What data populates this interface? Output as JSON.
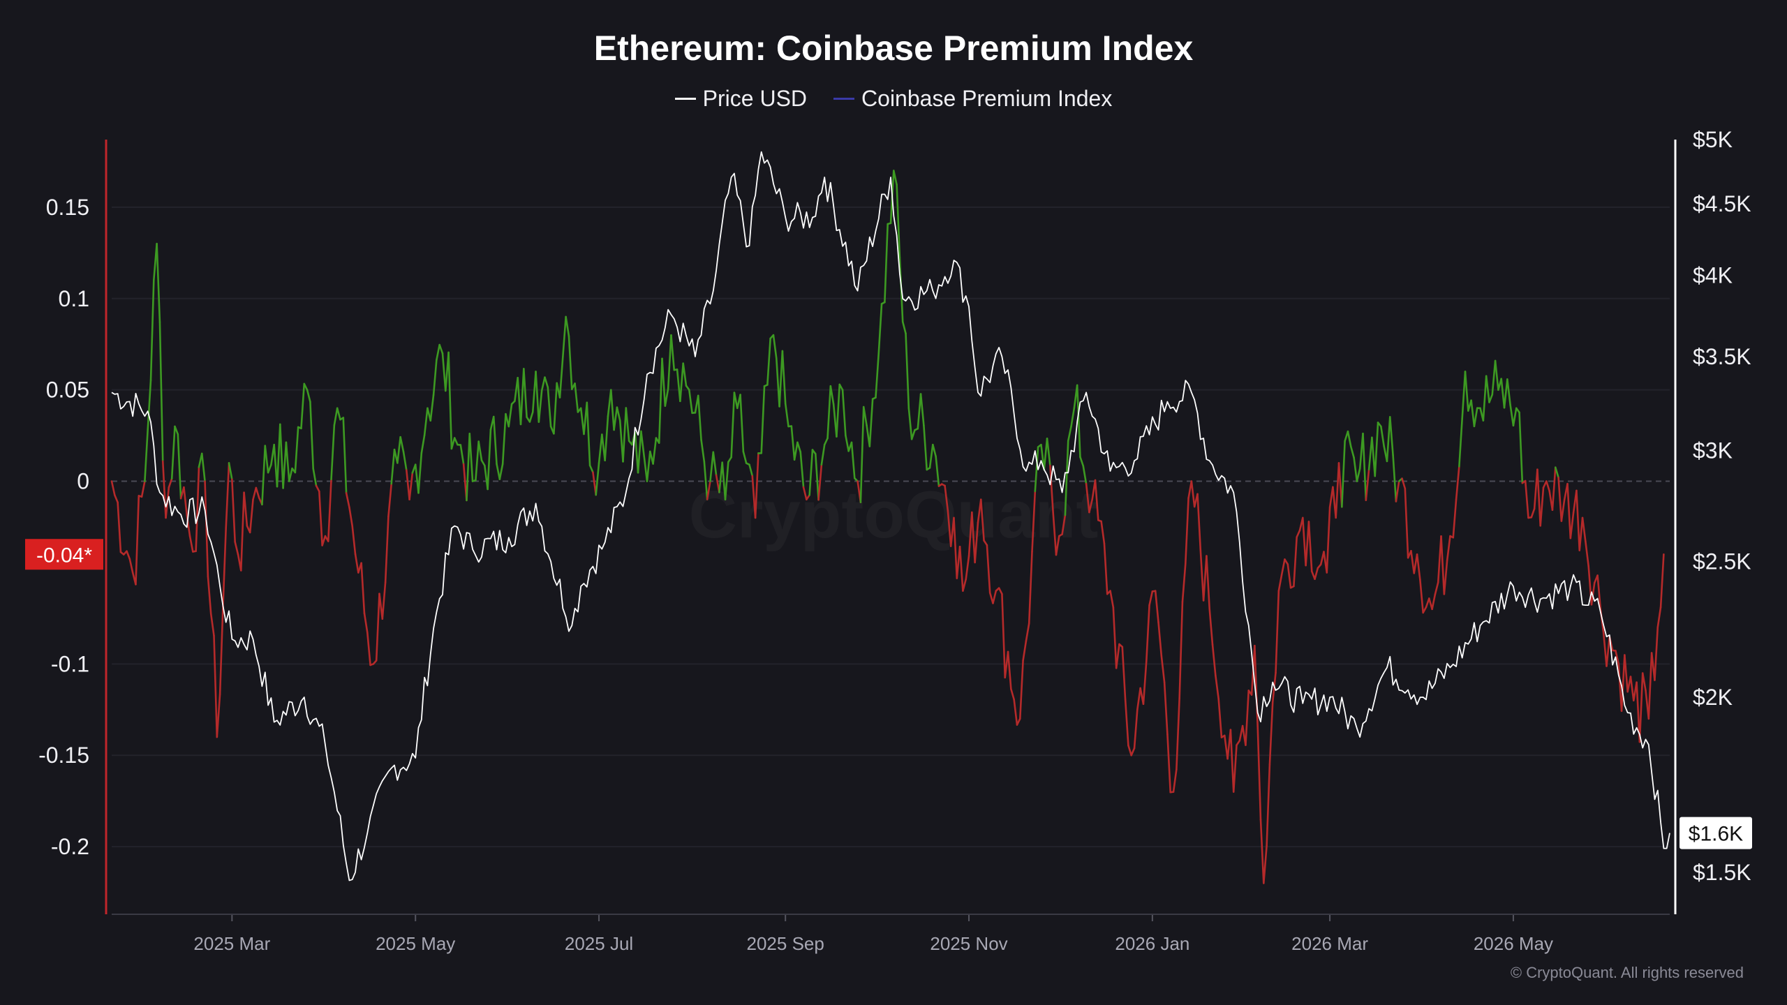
{
  "chart_data": {
    "type": "line",
    "title": "Ethereum: Coinbase Premium Index",
    "legend": [
      {
        "name": "Price USD",
        "color": "#ffffff"
      },
      {
        "name": "Coinbase Premium Index",
        "color": "#3a3aa8"
      }
    ],
    "legend_position": "top-center",
    "x_ticks": [
      "2025 Mar",
      "2025 May",
      "2025 Jul",
      "2025 Sep",
      "2025 Nov",
      "2026 Jan",
      "2026 Mar",
      "2026 May"
    ],
    "x_range": [
      "2025-01-20",
      "2026-06-22"
    ],
    "y_left": {
      "label": "",
      "ticks": [
        0.15,
        0.1,
        0.05,
        0,
        -0.1,
        -0.15,
        -0.2
      ],
      "tick_labels": [
        "0.15",
        "0.1",
        "0.05",
        "0",
        "-0.1",
        "-0.15",
        "-0.2"
      ],
      "range": [
        -0.237,
        0.187
      ]
    },
    "y_right": {
      "label": "",
      "scale": "log",
      "ticks": [
        5000,
        4500,
        4000,
        3500,
        3000,
        2500,
        2000,
        1500
      ],
      "tick_labels": [
        "$5K",
        "$4.5K",
        "$4K",
        "$3.5K",
        "$3K",
        "$2.5K",
        "$2K",
        "$1.5K"
      ],
      "range": [
        1400,
        5000
      ]
    },
    "current_value_labels": {
      "premium": "-0.04*",
      "price": "$1.6K"
    },
    "colors": {
      "positive": "#3d9a22",
      "negative": "#b52a2a",
      "price": "#ffffff",
      "badge_red": "#d92020"
    },
    "grid": true,
    "series": [
      {
        "name": "Price USD",
        "axis": "right",
        "points": [
          [
            "2025-01-20",
            3300
          ],
          [
            "2025-02-01",
            3200
          ],
          [
            "2025-02-05",
            2800
          ],
          [
            "2025-02-12",
            2700
          ],
          [
            "2025-02-20",
            2720
          ],
          [
            "2025-02-25",
            2400
          ],
          [
            "2025-03-01",
            2200
          ],
          [
            "2025-03-08",
            2200
          ],
          [
            "2025-03-15",
            1920
          ],
          [
            "2025-03-25",
            2000
          ],
          [
            "2025-04-01",
            1850
          ],
          [
            "2025-04-09",
            1480
          ],
          [
            "2025-04-15",
            1600
          ],
          [
            "2025-04-23",
            1780
          ],
          [
            "2025-05-01",
            1810
          ],
          [
            "2025-05-08",
            2300
          ],
          [
            "2025-05-14",
            2650
          ],
          [
            "2025-05-20",
            2550
          ],
          [
            "2025-06-01",
            2600
          ],
          [
            "2025-06-10",
            2750
          ],
          [
            "2025-06-15",
            2500
          ],
          [
            "2025-06-22",
            2250
          ],
          [
            "2025-06-25",
            2400
          ],
          [
            "2025-07-03",
            2580
          ],
          [
            "2025-07-10",
            2800
          ],
          [
            "2025-07-17",
            3400
          ],
          [
            "2025-07-25",
            3750
          ],
          [
            "2025-08-02",
            3500
          ],
          [
            "2025-08-08",
            3900
          ],
          [
            "2025-08-14",
            4700
          ],
          [
            "2025-08-20",
            4200
          ],
          [
            "2025-08-24",
            4900
          ],
          [
            "2025-09-01",
            4400
          ],
          [
            "2025-09-10",
            4400
          ],
          [
            "2025-09-14",
            4700
          ],
          [
            "2025-09-25",
            3900
          ],
          [
            "2025-10-06",
            4700
          ],
          [
            "2025-10-10",
            3850
          ],
          [
            "2025-10-20",
            3900
          ],
          [
            "2025-10-27",
            4100
          ],
          [
            "2025-11-01",
            3800
          ],
          [
            "2025-11-04",
            3300
          ],
          [
            "2025-11-12",
            3500
          ],
          [
            "2025-11-20",
            2900
          ],
          [
            "2025-11-25",
            2950
          ],
          [
            "2025-12-02",
            2800
          ],
          [
            "2025-12-10",
            3300
          ],
          [
            "2025-12-18",
            2900
          ],
          [
            "2025-12-26",
            2950
          ],
          [
            "2026-01-06",
            3250
          ],
          [
            "2026-01-14",
            3300
          ],
          [
            "2026-01-20",
            2950
          ],
          [
            "2026-01-28",
            2800
          ],
          [
            "2026-02-02",
            2250
          ],
          [
            "2026-02-05",
            1950
          ],
          [
            "2026-02-10",
            2050
          ],
          [
            "2026-02-20",
            1980
          ],
          [
            "2026-03-01",
            2000
          ],
          [
            "2026-03-10",
            1900
          ],
          [
            "2026-03-20",
            2100
          ],
          [
            "2026-04-01",
            2000
          ],
          [
            "2026-04-10",
            2100
          ],
          [
            "2026-04-20",
            2250
          ],
          [
            "2026-05-01",
            2400
          ],
          [
            "2026-05-10",
            2350
          ],
          [
            "2026-05-20",
            2400
          ],
          [
            "2026-05-30",
            2300
          ],
          [
            "2026-06-08",
            1950
          ],
          [
            "2026-06-15",
            1850
          ],
          [
            "2026-06-20",
            1560
          ],
          [
            "2026-06-22",
            1600
          ]
        ]
      },
      {
        "name": "Coinbase Premium Index",
        "axis": "left",
        "points": [
          [
            "2025-01-20",
            0.0
          ],
          [
            "2025-01-27",
            -0.05
          ],
          [
            "2025-01-31",
            0.0
          ],
          [
            "2025-02-04",
            0.13
          ],
          [
            "2025-02-07",
            -0.02
          ],
          [
            "2025-02-10",
            0.03
          ],
          [
            "2025-02-15",
            -0.03
          ],
          [
            "2025-02-20",
            0.0
          ],
          [
            "2025-02-24",
            -0.14
          ],
          [
            "2025-02-28",
            0.01
          ],
          [
            "2025-03-03",
            -0.04
          ],
          [
            "2025-03-08",
            -0.01
          ],
          [
            "2025-03-15",
            0.02
          ],
          [
            "2025-03-20",
            0.0
          ],
          [
            "2025-03-26",
            0.05
          ],
          [
            "2025-04-01",
            -0.03
          ],
          [
            "2025-04-05",
            0.04
          ],
          [
            "2025-04-12",
            -0.05
          ],
          [
            "2025-04-17",
            -0.1
          ],
          [
            "2025-04-25",
            0.01
          ],
          [
            "2025-04-29",
            -0.01
          ],
          [
            "2025-05-05",
            0.04
          ],
          [
            "2025-05-10",
            0.07
          ],
          [
            "2025-05-15",
            0.02
          ],
          [
            "2025-05-20",
            0.0
          ],
          [
            "2025-06-01",
            0.03
          ],
          [
            "2025-06-10",
            0.06
          ],
          [
            "2025-06-15",
            0.03
          ],
          [
            "2025-06-20",
            0.09
          ],
          [
            "2025-06-25",
            0.04
          ],
          [
            "2025-07-01",
            0.01
          ],
          [
            "2025-07-05",
            0.05
          ],
          [
            "2025-07-12",
            0.02
          ],
          [
            "2025-07-17",
            0.0
          ],
          [
            "2025-07-25",
            0.08
          ],
          [
            "2025-07-31",
            0.05
          ],
          [
            "2025-08-07",
            0.0
          ],
          [
            "2025-08-12",
            -0.01
          ],
          [
            "2025-08-16",
            0.04
          ],
          [
            "2025-08-22",
            -0.02
          ],
          [
            "2025-08-28",
            0.08
          ],
          [
            "2025-09-02",
            0.03
          ],
          [
            "2025-09-08",
            -0.01
          ],
          [
            "2025-09-14",
            0.02
          ],
          [
            "2025-09-20",
            0.05
          ],
          [
            "2025-09-25",
            0.0
          ],
          [
            "2025-10-02",
            0.07
          ],
          [
            "2025-10-07",
            0.17
          ],
          [
            "2025-10-12",
            0.04
          ],
          [
            "2025-10-20",
            0.02
          ],
          [
            "2025-10-27",
            -0.02
          ],
          [
            "2025-10-30",
            -0.06
          ],
          [
            "2025-11-05",
            -0.01
          ],
          [
            "2025-11-10",
            -0.06
          ],
          [
            "2025-11-18",
            -0.13
          ],
          [
            "2025-11-25",
            0.02
          ],
          [
            "2025-12-01",
            -0.03
          ],
          [
            "2025-12-06",
            0.04
          ],
          [
            "2025-12-12",
            -0.01
          ],
          [
            "2025-12-18",
            -0.06
          ],
          [
            "2025-12-25",
            -0.15
          ],
          [
            "2026-01-02",
            -0.06
          ],
          [
            "2026-01-08",
            -0.17
          ],
          [
            "2026-01-14",
            0.0
          ],
          [
            "2026-01-20",
            -0.07
          ],
          [
            "2026-01-28",
            -0.17
          ],
          [
            "2026-02-04",
            -0.09
          ],
          [
            "2026-02-07",
            -0.22
          ],
          [
            "2026-02-12",
            -0.06
          ],
          [
            "2026-02-20",
            -0.02
          ],
          [
            "2026-02-28",
            -0.05
          ],
          [
            "2026-03-04",
            0.01
          ],
          [
            "2026-03-10",
            0.0
          ],
          [
            "2026-03-18",
            0.03
          ],
          [
            "2026-03-24",
            0.0
          ],
          [
            "2026-03-30",
            -0.04
          ],
          [
            "2026-04-04",
            -0.07
          ],
          [
            "2026-04-10",
            -0.03
          ],
          [
            "2026-04-15",
            0.06
          ],
          [
            "2026-04-20",
            0.04
          ],
          [
            "2026-04-26",
            0.05
          ],
          [
            "2026-05-02",
            0.04
          ],
          [
            "2026-05-06",
            -0.02
          ],
          [
            "2026-05-12",
            0.0
          ],
          [
            "2026-05-18",
            -0.01
          ],
          [
            "2026-05-24",
            -0.02
          ],
          [
            "2026-05-30",
            -0.07
          ],
          [
            "2026-06-05",
            -0.1
          ],
          [
            "2026-06-10",
            -0.12
          ],
          [
            "2026-06-15",
            -0.13
          ],
          [
            "2026-06-18",
            -0.08
          ],
          [
            "2026-06-20",
            -0.04
          ]
        ]
      }
    ]
  },
  "footer": {
    "copyright": "© CryptoQuant. All rights reserved",
    "watermark": "CryptoQuant"
  }
}
